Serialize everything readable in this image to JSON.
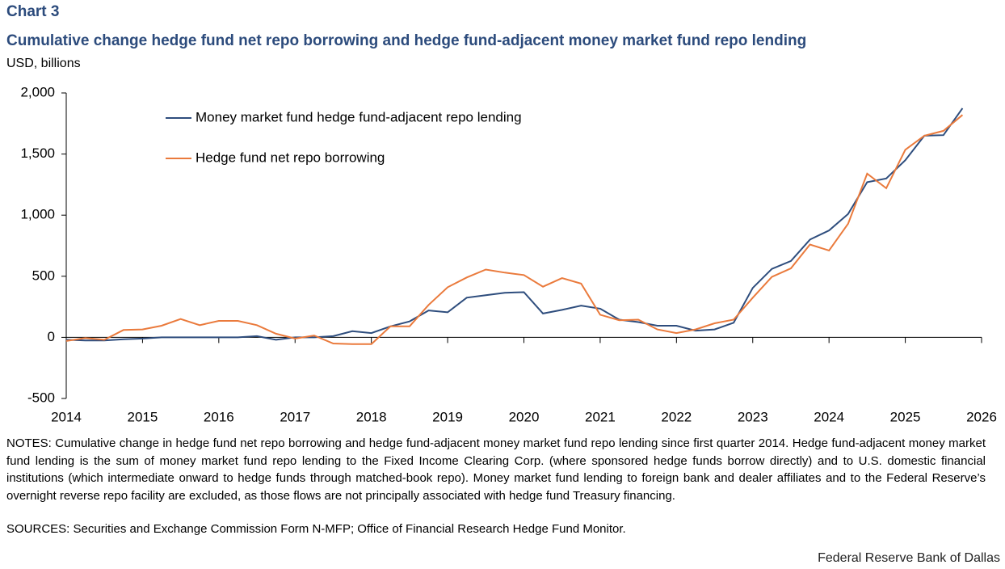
{
  "chart_data": {
    "type": "line",
    "label": "Chart 3",
    "title": "Cumulative change hedge fund net repo borrowing and hedge fund-adjacent money market fund repo lending",
    "ylabel": "USD, billions",
    "x": [
      2014,
      2014.25,
      2014.5,
      2014.75,
      2015,
      2015.25,
      2015.5,
      2015.75,
      2016,
      2016.25,
      2016.5,
      2016.75,
      2017,
      2017.25,
      2017.5,
      2017.75,
      2018,
      2018.25,
      2018.5,
      2018.75,
      2019,
      2019.25,
      2019.5,
      2019.75,
      2020,
      2020.25,
      2020.5,
      2020.75,
      2021,
      2021.25,
      2021.5,
      2021.75,
      2022,
      2022.25,
      2022.5,
      2022.75,
      2023,
      2023.25,
      2023.5,
      2023.75,
      2024,
      2024.25,
      2024.5,
      2024.75,
      2025,
      2025.25,
      2025.5,
      2025.75
    ],
    "series": [
      {
        "name": "Money market fund hedge fund-adjacent repo lending",
        "color": "#2e4d7d",
        "values": [
          -20,
          -25,
          -25,
          -15,
          -10,
          0,
          0,
          0,
          0,
          0,
          10,
          -20,
          0,
          0,
          10,
          50,
          35,
          90,
          130,
          220,
          205,
          325,
          345,
          365,
          370,
          195,
          225,
          260,
          235,
          145,
          125,
          95,
          95,
          55,
          65,
          120,
          405,
          560,
          625,
          800,
          875,
          1010,
          1270,
          1300,
          1450,
          1650,
          1655,
          1875
        ]
      },
      {
        "name": "Hedge fund net repo borrowing",
        "color": "#ea7a3c",
        "values": [
          -30,
          -5,
          -20,
          60,
          65,
          95,
          150,
          100,
          135,
          135,
          100,
          30,
          -10,
          15,
          -50,
          -55,
          -55,
          90,
          90,
          265,
          410,
          490,
          555,
          530,
          510,
          415,
          485,
          440,
          185,
          140,
          145,
          65,
          35,
          65,
          115,
          145,
          325,
          495,
          565,
          760,
          710,
          930,
          1340,
          1220,
          1535,
          1650,
          1690,
          1820
        ]
      }
    ],
    "xlim": [
      2014,
      2026
    ],
    "xticks": [
      2014,
      2015,
      2016,
      2017,
      2018,
      2019,
      2020,
      2021,
      2022,
      2023,
      2024,
      2025,
      2026
    ],
    "ylim": [
      -500,
      2000
    ],
    "yticks": [
      -500,
      0,
      500,
      {
        "value": 1000,
        "label": "1,000"
      },
      {
        "value": 1500,
        "label": "1,500"
      },
      {
        "value": 2000,
        "label": "2,000"
      }
    ],
    "grid": false,
    "legend": "upper-left",
    "notes": "NOTES: Cumulative change in hedge fund net repo borrowing and hedge fund-adjacent money market fund repo lending since first quarter 2014. Hedge fund-adjacent money market fund lending is the sum of money market fund repo lending to the Fixed Income Clearing Corp. (where sponsored hedge funds borrow directly) and to U.S. domestic financial institutions (which intermediate onward to hedge funds through matched-book repo). Money market fund lending to foreign bank and dealer affiliates and to the Federal Reserve’s overnight reverse repo facility are excluded, as those flows are not principally associated with hedge fund Treasury financing.",
    "sources": "SOURCES: Securities and Exchange Commission Form N-MFP; Office of Financial Research Hedge Fund Monitor.",
    "credit": "Federal Reserve Bank of Dallas"
  }
}
